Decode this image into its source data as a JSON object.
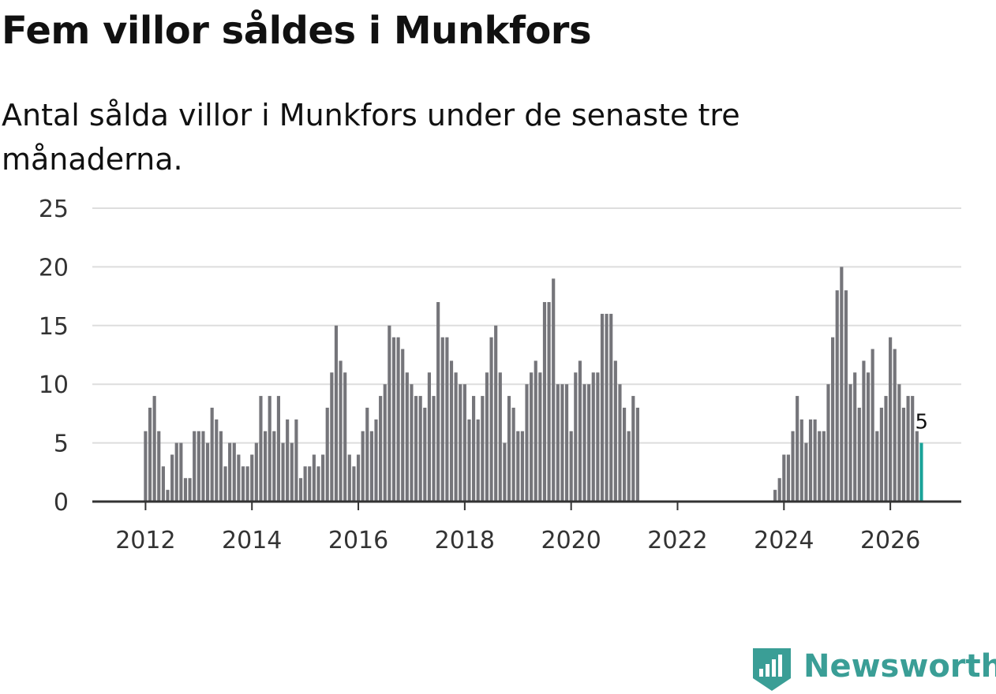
{
  "title": "Fem villor såldes i Munkfors",
  "subtitle": "Antal sålda villor i Munkfors under de senaste tre månaderna.",
  "brand": {
    "name": "Newsworthy",
    "color": "#3a9e96",
    "icon": "newsworthy-logo-icon"
  },
  "colors": {
    "bar": "#75757a",
    "highlight": "#1aa399",
    "grid": "#dddddd",
    "axis": "#333333"
  },
  "chart_data": {
    "type": "bar",
    "title": "Fem villor såldes i Munkfors",
    "xlabel": "",
    "ylabel": "",
    "ylim": [
      0,
      25
    ],
    "y_ticks": [
      0,
      5,
      10,
      15,
      20,
      25
    ],
    "x_ticks": [
      "2012",
      "2014",
      "2016",
      "2018",
      "2020",
      "2022",
      "2024",
      "2026"
    ],
    "x_range": [
      "2011-01",
      "2027-05"
    ],
    "start_month": "2012-01",
    "values": [
      6,
      8,
      9,
      6,
      3,
      1,
      4,
      5,
      5,
      2,
      2,
      6,
      6,
      6,
      5,
      8,
      7,
      6,
      3,
      5,
      5,
      4,
      3,
      3,
      4,
      5,
      9,
      6,
      9,
      6,
      9,
      5,
      7,
      5,
      7,
      2,
      3,
      3,
      4,
      3,
      4,
      8,
      11,
      15,
      12,
      11,
      4,
      3,
      4,
      6,
      8,
      6,
      7,
      9,
      10,
      15,
      14,
      14,
      13,
      11,
      10,
      9,
      9,
      8,
      11,
      9,
      17,
      14,
      14,
      12,
      11,
      10,
      10,
      7,
      9,
      7,
      9,
      11,
      14,
      15,
      11,
      5,
      9,
      8,
      6,
      6,
      10,
      11,
      12,
      11,
      17,
      17,
      19,
      10,
      10,
      10,
      6,
      11,
      12,
      10,
      10,
      11,
      11,
      16,
      16,
      16,
      12,
      10,
      8,
      6,
      9,
      8,
      null,
      null,
      null,
      null,
      null,
      null,
      null,
      null,
      null,
      null,
      null,
      null,
      null,
      null,
      null,
      null,
      null,
      null,
      null,
      null,
      null,
      null,
      null,
      null,
      null,
      null,
      null,
      null,
      null,
      null,
      1,
      2,
      4,
      4,
      6,
      9,
      7,
      5,
      7,
      7,
      6,
      6,
      10,
      14,
      18,
      20,
      18,
      10,
      11,
      8,
      12,
      11,
      13,
      6,
      8,
      9,
      14,
      13,
      10,
      8,
      9,
      9,
      6,
      5
    ],
    "highlight_last": true,
    "last_value_label": "5"
  }
}
